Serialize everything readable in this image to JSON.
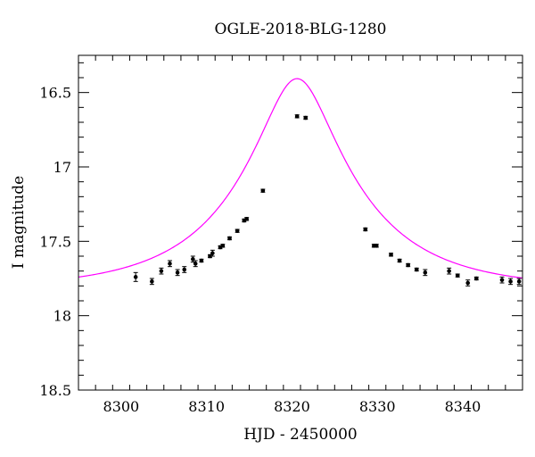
{
  "chart_data": {
    "type": "scatter",
    "title": "OGLE-2018-BLG-1280",
    "xlabel": "HJD - 2450000",
    "ylabel": "I magnitude",
    "xlim": [
      8295,
      8347
    ],
    "ylim": [
      18.5,
      16.25
    ],
    "y_inverted": true,
    "grid": false,
    "x_ticks": [
      8300,
      8310,
      8320,
      8330,
      8340
    ],
    "x_tick_labels": [
      "8300",
      "8310",
      "8320",
      "8330",
      "8340"
    ],
    "y_ticks": [
      16.5,
      17,
      17.5,
      18,
      18.5
    ],
    "y_tick_labels": [
      "16.5",
      "17",
      "17.5",
      "18",
      "18.5"
    ],
    "colors": {
      "data": "#000000",
      "model": "#ff00ff"
    },
    "model": {
      "t0": 8320.6,
      "tE": 14.0,
      "u0": 0.28,
      "I_base": 17.82
    },
    "series": [
      {
        "x": [
          8301.7,
          8303.6,
          8304.7,
          8305.7,
          8306.6,
          8307.4,
          8308.4,
          8308.7,
          8309.4,
          8310.4,
          8310.7,
          8311.6,
          8311.9,
          8312.7,
          8313.6,
          8314.4,
          8314.7,
          8316.6,
          8320.6,
          8321.6,
          8328.6,
          8329.6,
          8329.9,
          8331.6,
          8332.6,
          8333.6,
          8334.6,
          8335.6,
          8338.4,
          8339.4,
          8340.6,
          8341.6,
          8344.6,
          8345.6,
          8346.6
        ],
        "values": [
          17.74,
          17.77,
          17.7,
          17.65,
          17.71,
          17.69,
          17.62,
          17.65,
          17.63,
          17.6,
          17.58,
          17.54,
          17.53,
          17.48,
          17.43,
          17.36,
          17.35,
          17.16,
          16.66,
          16.67,
          17.42,
          17.53,
          17.53,
          17.59,
          17.63,
          17.66,
          17.69,
          17.71,
          17.7,
          17.73,
          17.78,
          17.75,
          17.76,
          17.77,
          17.77
        ],
        "errors": [
          0.03,
          0.02,
          0.02,
          0.02,
          0.02,
          0.02,
          0.02,
          0.02,
          0.01,
          0.01,
          0.02,
          0.01,
          0.01,
          0.01,
          0.01,
          0.01,
          0.01,
          0.01,
          0.01,
          0.01,
          0.01,
          0.01,
          0.01,
          0.01,
          0.01,
          0.01,
          0.01,
          0.02,
          0.02,
          0.01,
          0.02,
          0.01,
          0.02,
          0.02,
          0.02
        ]
      }
    ]
  }
}
